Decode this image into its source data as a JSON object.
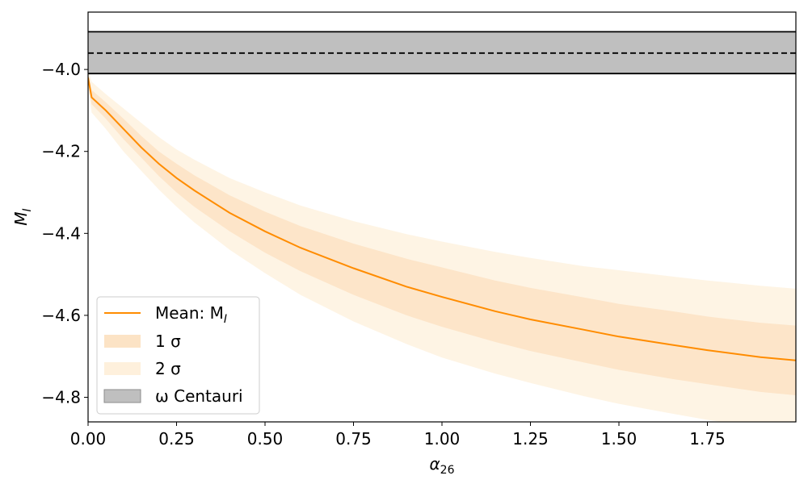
{
  "chart_data": {
    "type": "line",
    "title": "",
    "xlabel": "α",
    "xlabel_sub": "26",
    "ylabel": "M",
    "ylabel_sub": "I",
    "xlim": [
      0,
      2.0
    ],
    "ylim": [
      -4.86,
      -3.86
    ],
    "x_ticks": [
      0.0,
      0.25,
      0.5,
      0.75,
      1.0,
      1.25,
      1.5,
      1.75
    ],
    "x_tick_labels": [
      "0.00",
      "0.25",
      "0.50",
      "0.75",
      "1.00",
      "1.25",
      "1.50",
      "1.75"
    ],
    "y_ticks": [
      -4.0,
      -4.2,
      -4.4,
      -4.6,
      -4.8
    ],
    "y_tick_labels": [
      "−4.0",
      "−4.2",
      "−4.4",
      "−4.6",
      "−4.8"
    ],
    "grid": false,
    "legend_position": "lower-left",
    "x": [
      0.0,
      0.01,
      0.05,
      0.1,
      0.15,
      0.2,
      0.25,
      0.3,
      0.4,
      0.5,
      0.6,
      0.75,
      0.9,
      1.0,
      1.15,
      1.25,
      1.4,
      1.5,
      1.65,
      1.75,
      1.9,
      2.0
    ],
    "series": [
      {
        "name": "Mean: M",
        "name_sub": "I",
        "kind": "line",
        "color": "#ff8c00",
        "values": [
          -4.02,
          -4.068,
          -4.1,
          -4.145,
          -4.19,
          -4.23,
          -4.265,
          -4.295,
          -4.35,
          -4.395,
          -4.435,
          -4.485,
          -4.53,
          -4.555,
          -4.59,
          -4.61,
          -4.635,
          -4.652,
          -4.672,
          -4.685,
          -4.702,
          -4.71
        ]
      },
      {
        "name": "1 σ",
        "kind": "band",
        "color": "#fbd9b2",
        "opacity": 0.55,
        "lower": [
          -4.03,
          -4.085,
          -4.12,
          -4.17,
          -4.215,
          -4.26,
          -4.3,
          -4.335,
          -4.395,
          -4.447,
          -4.492,
          -4.55,
          -4.6,
          -4.628,
          -4.665,
          -4.687,
          -4.715,
          -4.733,
          -4.755,
          -4.768,
          -4.787,
          -4.795
        ],
        "upper": [
          -4.01,
          -4.05,
          -4.08,
          -4.12,
          -4.162,
          -4.2,
          -4.23,
          -4.258,
          -4.307,
          -4.347,
          -4.382,
          -4.425,
          -4.462,
          -4.483,
          -4.515,
          -4.533,
          -4.556,
          -4.572,
          -4.59,
          -4.603,
          -4.618,
          -4.625
        ]
      },
      {
        "name": "2 σ",
        "kind": "band",
        "color": "#fde6c4",
        "opacity": 0.45,
        "lower": [
          -4.04,
          -4.105,
          -4.145,
          -4.2,
          -4.247,
          -4.293,
          -4.335,
          -4.373,
          -4.44,
          -4.497,
          -4.55,
          -4.615,
          -4.67,
          -4.703,
          -4.742,
          -4.765,
          -4.797,
          -4.816,
          -4.84,
          -4.855,
          -4.873,
          -4.885
        ],
        "upper": [
          -4.0,
          -4.03,
          -4.06,
          -4.095,
          -4.13,
          -4.165,
          -4.195,
          -4.22,
          -4.265,
          -4.3,
          -4.332,
          -4.37,
          -4.402,
          -4.42,
          -4.445,
          -4.46,
          -4.48,
          -4.49,
          -4.505,
          -4.515,
          -4.528,
          -4.535
        ]
      },
      {
        "name": "ω Centauri",
        "kind": "hband",
        "color": "#bfbfbf",
        "mean": -3.96,
        "lower": -4.01,
        "upper": -3.908
      }
    ]
  }
}
